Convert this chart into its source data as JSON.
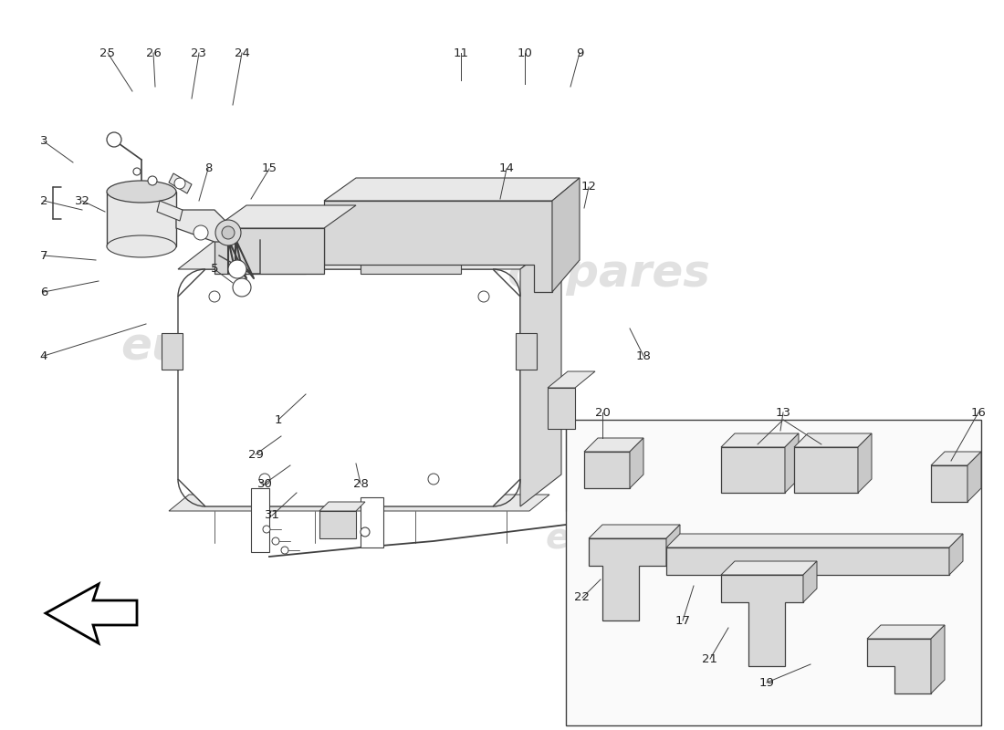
{
  "bg_color": "#ffffff",
  "lc": "#404040",
  "lc_thin": "#606060",
  "fill_white": "#ffffff",
  "fill_light": "#e8e8e8",
  "fill_mid": "#d8d8d8",
  "fill_dark": "#c8c8c8",
  "watermark_color": "#d5d5d5",
  "wm_alpha": 0.7
}
